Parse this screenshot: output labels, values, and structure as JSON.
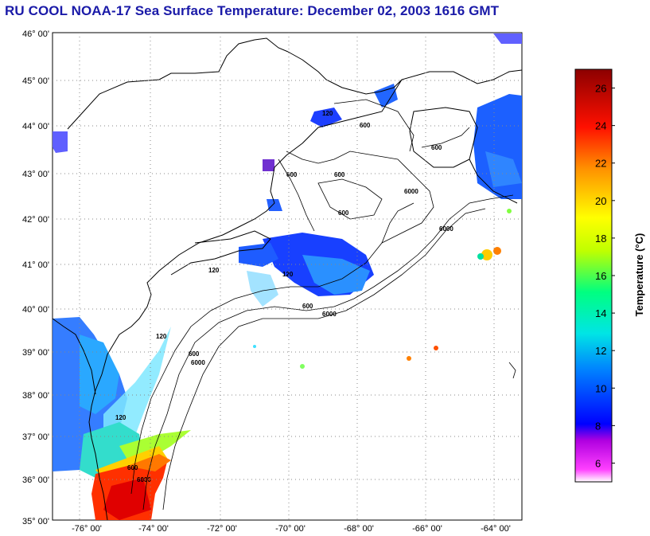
{
  "title": "RU COOL  NOAA-17  Sea Surface Temperature:  December 02, 2003 1616 GMT",
  "map": {
    "lat_labels": [
      "46° 00'",
      "45° 00'",
      "44° 00'",
      "43° 00'",
      "42° 00'",
      "41° 00'",
      "40° 00'",
      "39° 00'",
      "38° 00'",
      "37° 00'",
      "36° 00'",
      "35° 00'"
    ],
    "lon_labels": [
      "-76° 00'",
      "-74° 00'",
      "-72° 00'",
      "-70° 00'",
      "-68° 00'",
      "-66° 00'",
      "-64° 00'"
    ],
    "isobath_labels": [
      "120",
      "600",
      "600",
      "600",
      "6000",
      "600",
      "6000",
      "120",
      "600",
      "6000",
      "120",
      "600",
      "6000",
      "120",
      "600",
      "120",
      "600",
      "6000"
    ]
  },
  "colorbar": {
    "title": "Temperature (°C)",
    "ticks": [
      "26",
      "24",
      "22",
      "20",
      "18",
      "16",
      "14",
      "12",
      "10",
      "8",
      "6"
    ],
    "range": [
      5,
      27
    ],
    "colors": {
      "min": "#ffffff",
      "6": "#ff40ff",
      "8": "#0000ff",
      "12": "#00ffff",
      "17": "#66ff00",
      "19": "#ffff00",
      "22": "#ff8000",
      "24": "#ff0000",
      "27": "#990000"
    }
  }
}
